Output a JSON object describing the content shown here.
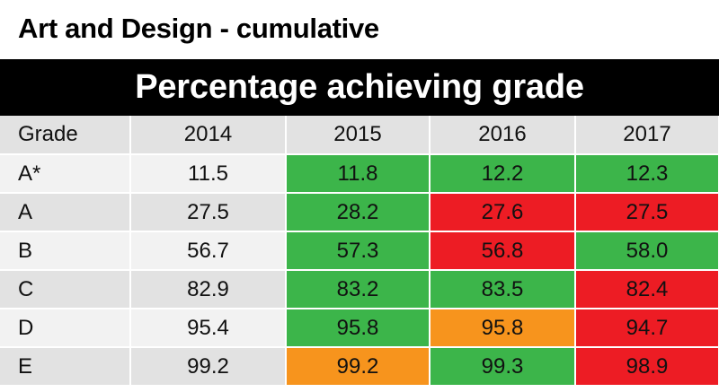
{
  "title": "Art and Design - cumulative",
  "header": "Percentage achieving grade",
  "colors": {
    "green": "#3cb54a",
    "red": "#ed1c24",
    "orange": "#f7941d"
  },
  "chart_data": {
    "type": "table",
    "title": "Art and Design - cumulative",
    "subtitle": "Percentage achieving grade",
    "columns": [
      "Grade",
      "2014",
      "2015",
      "2016",
      "2017"
    ],
    "rows": [
      {
        "grade": "A*",
        "values": [
          "11.5",
          "11.8",
          "12.2",
          "12.3"
        ],
        "colors": [
          "",
          "green",
          "green",
          "green"
        ]
      },
      {
        "grade": "A",
        "values": [
          "27.5",
          "28.2",
          "27.6",
          "27.5"
        ],
        "colors": [
          "",
          "green",
          "red",
          "red"
        ]
      },
      {
        "grade": "B",
        "values": [
          "56.7",
          "57.3",
          "56.8",
          "58.0"
        ],
        "colors": [
          "",
          "green",
          "red",
          "green"
        ]
      },
      {
        "grade": "C",
        "values": [
          "82.9",
          "83.2",
          "83.5",
          "82.4"
        ],
        "colors": [
          "",
          "green",
          "green",
          "red"
        ]
      },
      {
        "grade": "D",
        "values": [
          "95.4",
          "95.8",
          "95.8",
          "94.7"
        ],
        "colors": [
          "",
          "green",
          "orange",
          "red"
        ]
      },
      {
        "grade": "E",
        "values": [
          "99.2",
          "99.2",
          "99.3",
          "98.9"
        ],
        "colors": [
          "",
          "orange",
          "green",
          "red"
        ]
      }
    ]
  }
}
